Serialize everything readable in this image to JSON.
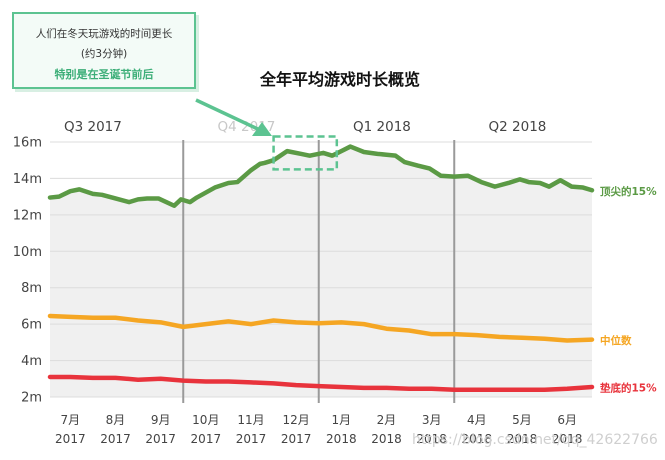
{
  "callout": {
    "line1": "人们在冬天玩游戏的时间更长",
    "line2": "(约3分钟)",
    "line3": "特别是在圣诞节前后",
    "border_color": "#5cc391",
    "highlight_color": "#3cae78"
  },
  "watermark": "https://blog.csdn.net/qq_42622766",
  "chart_data": {
    "type": "line",
    "title": "全年平均游戏时长概览",
    "xlabel": "",
    "ylabel": "",
    "ylim": [
      2,
      16
    ],
    "yticks": [
      "2m",
      "4m",
      "6m",
      "8m",
      "10m",
      "12m",
      "14m",
      "16m"
    ],
    "ytick_values": [
      2,
      4,
      6,
      8,
      10,
      12,
      14,
      16
    ],
    "xlim": [
      6.55,
      18.55
    ],
    "months": [
      {
        "x": 7,
        "month": "7月",
        "year": "2017"
      },
      {
        "x": 8,
        "month": "8月",
        "year": "2017"
      },
      {
        "x": 9,
        "month": "9月",
        "year": "2017"
      },
      {
        "x": 10,
        "month": "10月",
        "year": "2017"
      },
      {
        "x": 11,
        "month": "11月",
        "year": "2017"
      },
      {
        "x": 12,
        "month": "12月",
        "year": "2017"
      },
      {
        "x": 13,
        "month": "1月",
        "year": "2018"
      },
      {
        "x": 14,
        "month": "2月",
        "year": "2018"
      },
      {
        "x": 15,
        "month": "3月",
        "year": "2018"
      },
      {
        "x": 16,
        "month": "4月",
        "year": "2018"
      },
      {
        "x": 17,
        "month": "5月",
        "year": "2018"
      },
      {
        "x": 18,
        "month": "6月",
        "year": "2018"
      }
    ],
    "quarters": [
      {
        "label": "Q3 2017",
        "x": 7.5,
        "faded": false
      },
      {
        "label": "Q4 2017",
        "x": 10.9,
        "faded": true
      },
      {
        "label": "Q1 2018",
        "x": 13.9,
        "faded": false
      },
      {
        "label": "Q2 2018",
        "x": 16.9,
        "faded": false
      }
    ],
    "quarter_dividers": [
      9.5,
      12.5,
      15.5
    ],
    "highlight_box": {
      "x": [
        11.5,
        12.9
      ],
      "y": [
        14.5,
        16.3
      ],
      "color": "#5cc391"
    },
    "shaded_area": true,
    "series": [
      {
        "name": "顶尖的15%",
        "color": "#5b9a45",
        "x": [
          6.55,
          6.75,
          7.0,
          7.2,
          7.5,
          7.7,
          8.0,
          8.3,
          8.5,
          8.7,
          8.95,
          9.3,
          9.45,
          9.65,
          9.8,
          10.2,
          10.5,
          10.7,
          11.0,
          11.2,
          11.3,
          11.5,
          11.8,
          12.1,
          12.3,
          12.6,
          12.8,
          13.0,
          13.2,
          13.5,
          13.8,
          14.0,
          14.2,
          14.4,
          14.7,
          14.95,
          15.2,
          15.5,
          15.8,
          16.1,
          16.4,
          16.7,
          16.95,
          17.15,
          17.4,
          17.6,
          17.85,
          18.1,
          18.35,
          18.55
        ],
        "values": [
          12.95,
          13.0,
          13.3,
          13.4,
          13.15,
          13.1,
          12.9,
          12.7,
          12.85,
          12.9,
          12.9,
          12.5,
          12.85,
          12.7,
          12.95,
          13.5,
          13.75,
          13.8,
          14.45,
          14.8,
          14.85,
          15.0,
          15.5,
          15.35,
          15.25,
          15.4,
          15.25,
          15.5,
          15.75,
          15.45,
          15.35,
          15.3,
          15.25,
          14.9,
          14.7,
          14.55,
          14.15,
          14.1,
          14.15,
          13.8,
          13.55,
          13.75,
          13.95,
          13.8,
          13.75,
          13.55,
          13.9,
          13.55,
          13.5,
          13.35
        ]
      },
      {
        "name": "中位数",
        "color": "#f5a623",
        "x": [
          6.55,
          7.0,
          7.5,
          8.0,
          8.5,
          9.0,
          9.5,
          10.0,
          10.5,
          11.0,
          11.5,
          12.0,
          12.5,
          13.0,
          13.5,
          14.0,
          14.5,
          15.0,
          15.5,
          16.0,
          16.5,
          17.0,
          17.5,
          18.0,
          18.55
        ],
        "values": [
          6.45,
          6.4,
          6.35,
          6.35,
          6.2,
          6.1,
          5.85,
          6.0,
          6.15,
          6.0,
          6.2,
          6.1,
          6.05,
          6.1,
          6.0,
          5.75,
          5.65,
          5.45,
          5.45,
          5.4,
          5.3,
          5.25,
          5.2,
          5.1,
          5.15
        ]
      },
      {
        "name": "垫底的15%",
        "color": "#e8333c",
        "x": [
          6.55,
          7.0,
          7.5,
          8.0,
          8.5,
          9.0,
          9.5,
          10.0,
          10.5,
          11.0,
          11.5,
          12.0,
          12.5,
          13.0,
          13.5,
          14.0,
          14.5,
          15.0,
          15.5,
          16.0,
          16.5,
          17.0,
          17.5,
          18.0,
          18.55
        ],
        "values": [
          3.1,
          3.1,
          3.05,
          3.05,
          2.95,
          3.0,
          2.9,
          2.85,
          2.85,
          2.8,
          2.75,
          2.65,
          2.6,
          2.55,
          2.5,
          2.5,
          2.45,
          2.45,
          2.4,
          2.4,
          2.4,
          2.4,
          2.4,
          2.45,
          2.55
        ]
      }
    ]
  }
}
